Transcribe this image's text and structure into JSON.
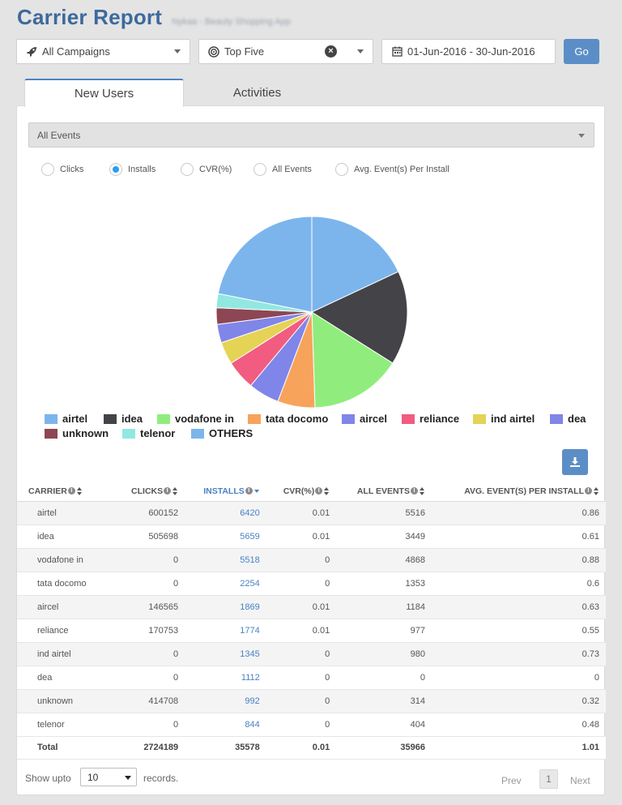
{
  "header": {
    "title": "Carrier Report",
    "subtitle": "Nykaa - Beauty Shopping App"
  },
  "filters": {
    "campaign": "All Campaigns",
    "top": "Top Five",
    "date_range": "01-Jun-2016 - 30-Jun-2016",
    "go_label": "Go"
  },
  "tabs": [
    {
      "label": "New Users",
      "active": true
    },
    {
      "label": "Activities",
      "active": false
    }
  ],
  "events_select": "All Events",
  "metrics": [
    {
      "label": "Clicks",
      "checked": false
    },
    {
      "label": "Installs",
      "checked": true
    },
    {
      "label": "CVR(%)",
      "checked": false
    },
    {
      "label": "All Events",
      "checked": false
    },
    {
      "label": "Avg. Event(s) Per Install",
      "checked": false
    }
  ],
  "colors": {
    "accent": "#3d6a9c",
    "link": "#4a82c3",
    "button": "#5b8ec7"
  },
  "chart_data": {
    "type": "pie",
    "metric": "Installs",
    "slices": [
      {
        "name": "airtel",
        "value": 6420,
        "color": "#7cb5ec"
      },
      {
        "name": "idea",
        "value": 5659,
        "color": "#434348"
      },
      {
        "name": "vodafone in",
        "value": 5518,
        "color": "#90ed7d"
      },
      {
        "name": "tata docomo",
        "value": 2254,
        "color": "#f7a35c"
      },
      {
        "name": "aircel",
        "value": 1869,
        "color": "#8085e9"
      },
      {
        "name": "reliance",
        "value": 1774,
        "color": "#f15c80"
      },
      {
        "name": "ind airtel",
        "value": 1345,
        "color": "#e4d354"
      },
      {
        "name": "dea",
        "value": 1112,
        "color": "#8085e8"
      },
      {
        "name": "unknown",
        "value": 992,
        "color": "#8d4653"
      },
      {
        "name": "telenor",
        "value": 844,
        "color": "#91e8e1"
      },
      {
        "name": "OTHERS",
        "value": 7791,
        "color": "#7cb5ec"
      }
    ],
    "legend_placement": "bottom"
  },
  "table": {
    "headers": [
      "CARRIER",
      "CLICKS",
      "INSTALLS",
      "CVR(%)",
      "ALL EVENTS",
      "AVG. EVENT(S) PER INSTALL"
    ],
    "rows": [
      {
        "carrier": "airtel",
        "clicks": "600152",
        "installs": "6420",
        "cvr": "0.01",
        "events": "5516",
        "avg": "0.86"
      },
      {
        "carrier": "idea",
        "clicks": "505698",
        "installs": "5659",
        "cvr": "0.01",
        "events": "3449",
        "avg": "0.61"
      },
      {
        "carrier": "vodafone in",
        "clicks": "0",
        "installs": "5518",
        "cvr": "0",
        "events": "4868",
        "avg": "0.88"
      },
      {
        "carrier": "tata docomo",
        "clicks": "0",
        "installs": "2254",
        "cvr": "0",
        "events": "1353",
        "avg": "0.6"
      },
      {
        "carrier": "aircel",
        "clicks": "146565",
        "installs": "1869",
        "cvr": "0.01",
        "events": "1184",
        "avg": "0.63"
      },
      {
        "carrier": "reliance",
        "clicks": "170753",
        "installs": "1774",
        "cvr": "0.01",
        "events": "977",
        "avg": "0.55"
      },
      {
        "carrier": "ind airtel",
        "clicks": "0",
        "installs": "1345",
        "cvr": "0",
        "events": "980",
        "avg": "0.73"
      },
      {
        "carrier": "dea",
        "clicks": "0",
        "installs": "1112",
        "cvr": "0",
        "events": "0",
        "avg": "0"
      },
      {
        "carrier": "unknown",
        "clicks": "414708",
        "installs": "992",
        "cvr": "0",
        "events": "314",
        "avg": "0.32"
      },
      {
        "carrier": "telenor",
        "clicks": "0",
        "installs": "844",
        "cvr": "0",
        "events": "404",
        "avg": "0.48"
      }
    ],
    "total": {
      "carrier": "Total",
      "clicks": "2724189",
      "installs": "35578",
      "cvr": "0.01",
      "events": "35966",
      "avg": "1.01"
    }
  },
  "footer": {
    "show_upto": "Show upto",
    "records_value": "10",
    "records_label": "records.",
    "prev": "Prev",
    "page": "1",
    "next": "Next"
  }
}
